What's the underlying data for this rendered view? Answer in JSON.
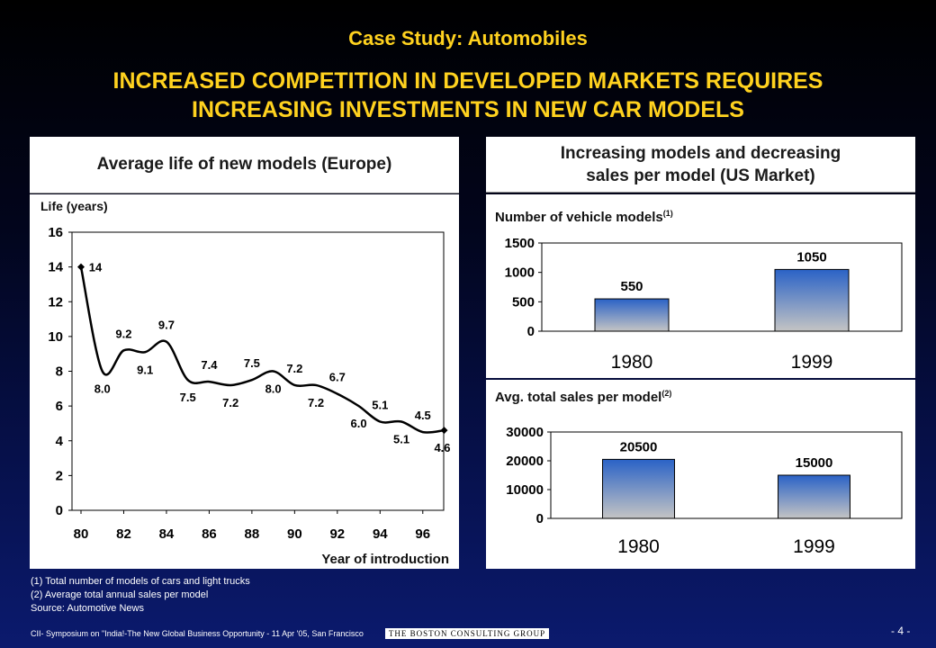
{
  "case_title": "Case Study: Automobiles",
  "headline_1": "INCREASED COMPETITION IN DEVELOPED MARKETS REQUIRES",
  "headline_2": "INCREASING INVESTMENTS IN NEW CAR MODELS",
  "left_panel_title": "Average life of new models (Europe)",
  "right_panel_title_1": "Increasing models and decreasing",
  "right_panel_title_2": "sales per model (US Market)",
  "footnotes": [
    "(1)  Total number of models of cars and light trucks",
    "(2)  Average total annual sales per model",
    "Source: Automotive News"
  ],
  "footer_left": "CII- Symposium on \"India!-The New Global Business Opportunity - 11 Apr '05, San Francisco",
  "footer_logo": "THE BOSTON CONSULTING GROUP",
  "page_number": "- 4 -",
  "colors": {
    "title_yellow": "#ffd21f",
    "bar_top": "#2a62c6",
    "bar_bottom": "#c4c4c4"
  },
  "chart_data": [
    {
      "type": "line",
      "ylabel": "Life (years)",
      "xlabel": "Year of introduction",
      "ylim": [
        0,
        16
      ],
      "yticks": [
        0,
        2,
        4,
        6,
        8,
        10,
        12,
        14,
        16
      ],
      "xlim": [
        80,
        97
      ],
      "xticks": [
        "80",
        "82",
        "84",
        "86",
        "88",
        "90",
        "92",
        "94",
        "96"
      ],
      "x": [
        80,
        81,
        82,
        83,
        84,
        85,
        86,
        87,
        88,
        89,
        90,
        91,
        92,
        93,
        94,
        95,
        96,
        97
      ],
      "values": [
        14,
        8.0,
        9.2,
        9.1,
        9.7,
        7.5,
        7.4,
        7.2,
        7.5,
        8.0,
        7.2,
        7.2,
        6.7,
        6.0,
        5.1,
        5.1,
        4.5,
        4.6
      ],
      "labels": [
        "14",
        "8.0",
        "9.2",
        "9.1",
        "9.7",
        "7.5",
        "7.4",
        "7.2",
        "7.5",
        "8.0",
        "7.2",
        "7.2",
        "6.7",
        "6.0",
        "5.1",
        "5.1",
        "4.5",
        "4.6"
      ]
    },
    {
      "type": "bar",
      "title": "Number of vehicle models",
      "title_sup": "(1)",
      "categories": [
        "1980",
        "1999"
      ],
      "values": [
        550,
        1050
      ],
      "ylim": [
        0,
        1500
      ],
      "yticks": [
        0,
        500,
        1000,
        1500
      ]
    },
    {
      "type": "bar",
      "title": "Avg. total sales per model",
      "title_sup": "(2)",
      "categories": [
        "1980",
        "1999"
      ],
      "values": [
        20500,
        15000
      ],
      "ylim": [
        0,
        30000
      ],
      "yticks": [
        0,
        10000,
        20000,
        30000
      ]
    }
  ]
}
